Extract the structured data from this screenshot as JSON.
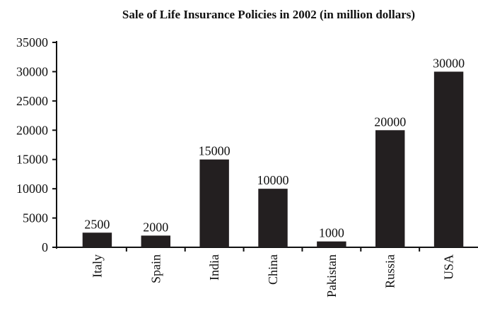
{
  "chart_data": {
    "type": "bar",
    "title": "Sale of Life Insurance Policies in 2002 (in million dollars)",
    "categories": [
      "Italy",
      "Spain",
      "India",
      "China",
      "Pakistan",
      "Russia",
      "USA"
    ],
    "values": [
      2500,
      2000,
      15000,
      10000,
      1000,
      20000,
      30000
    ],
    "color": "#231f20",
    "ylim": [
      0,
      35000
    ],
    "yticks": [
      0,
      5000,
      10000,
      15000,
      20000,
      25000,
      30000,
      35000
    ],
    "grid": false
  }
}
